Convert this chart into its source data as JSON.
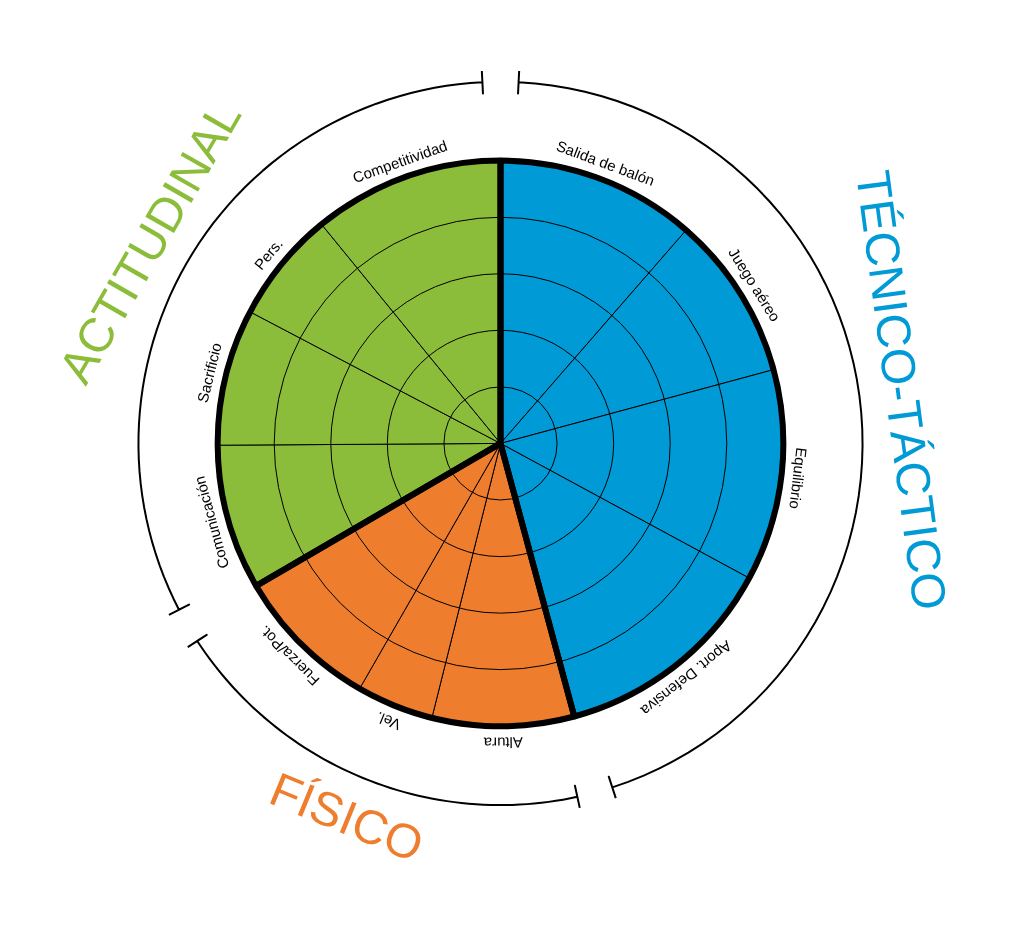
{
  "chart_data": {
    "type": "pie",
    "categories": [
      "Salida de balón",
      "Juego aéreo",
      "Equilibrio",
      "Aport. Defensiva",
      "Altura",
      "Vel.",
      "Fuerza/Pot.",
      "Comunicación",
      "Sacrificio",
      "Pers.",
      "Competitividad"
    ],
    "values": [
      11.4,
      9.4,
      12.1,
      12.9,
      8.1,
      4.4,
      8.3,
      8.3,
      7.8,
      6.4,
      10.9
    ],
    "colors": [
      "#009bd6",
      "#009bd6",
      "#009bd6",
      "#009bd6",
      "#ef7d2e",
      "#ef7d2e",
      "#ef7d2e",
      "#8cbd3a",
      "#8cbd3a",
      "#8cbd3a",
      "#8cbd3a"
    ],
    "annotations": [
      "TÉCNICO-TÁCTICO",
      "FÍSICO",
      "ACTITUDINAL"
    ],
    "grid": true
  }
}
